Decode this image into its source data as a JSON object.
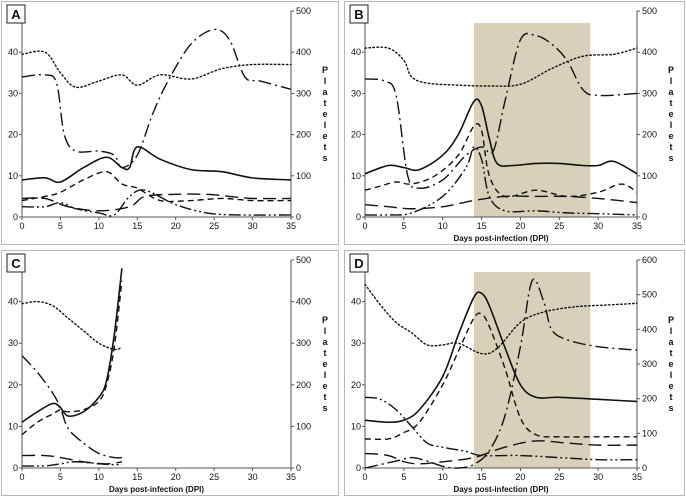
{
  "chart_data": [
    {
      "type": "line",
      "panel_label": "A",
      "xlabel": "",
      "ylabel": "",
      "y2label": "Platelets",
      "xlim": [
        0,
        35
      ],
      "ylim": [
        0,
        50
      ],
      "y2lim": [
        0,
        500
      ],
      "x_ticks": [
        0,
        5,
        10,
        15,
        20,
        25,
        30,
        35
      ],
      "y_ticks": [
        0,
        10,
        20,
        30,
        40,
        50
      ],
      "y2_ticks": [
        0,
        100,
        200,
        300,
        400,
        500
      ],
      "shaded_range": null,
      "series": [
        {
          "style": "solid",
          "axis": "left",
          "x": [
            0,
            3,
            5,
            8,
            11,
            13,
            14,
            15,
            18,
            22,
            26,
            30,
            35
          ],
          "y": [
            9,
            9.5,
            8.5,
            12,
            14.5,
            12,
            12,
            17,
            14,
            11.5,
            11,
            9.5,
            9
          ]
        },
        {
          "style": "short-dash",
          "axis": "left",
          "x": [
            0,
            3,
            5,
            8,
            11,
            13,
            15,
            18,
            22,
            26,
            30,
            35
          ],
          "y": [
            4,
            5,
            6,
            9,
            11,
            8,
            7,
            4,
            4,
            4.5,
            4,
            4
          ]
        },
        {
          "style": "long-dash",
          "axis": "left",
          "x": [
            0,
            3,
            6,
            10,
            14,
            16,
            20,
            24,
            27,
            30,
            35
          ],
          "y": [
            4.5,
            4.5,
            2.5,
            1.5,
            2.5,
            5,
            5.5,
            5.5,
            5,
            4.5,
            4.5
          ]
        },
        {
          "style": "dash-dot-dot",
          "axis": "left",
          "x": [
            0,
            3,
            5,
            7,
            10,
            12,
            14,
            16,
            20,
            24,
            28,
            35
          ],
          "y": [
            2.5,
            2.5,
            3.5,
            2,
            1,
            0.5,
            5,
            6.5,
            3,
            1,
            0.5,
            0.5
          ]
        },
        {
          "style": "dotted",
          "axis": "right",
          "x": [
            0,
            3,
            5,
            7,
            10,
            13,
            15,
            18,
            22,
            26,
            30,
            35
          ],
          "y": [
            395,
            400,
            350,
            315,
            330,
            345,
            320,
            345,
            335,
            360,
            370,
            370
          ]
        },
        {
          "style": "dash-dot",
          "axis": "right",
          "x": [
            0,
            3,
            4.5,
            5.5,
            7,
            10,
            12,
            13,
            15,
            17,
            19,
            22,
            25,
            27,
            29,
            31,
            35
          ],
          "y": [
            340,
            345,
            325,
            200,
            160,
            160,
            150,
            120,
            150,
            250,
            330,
            420,
            455,
            430,
            340,
            330,
            310
          ]
        }
      ]
    },
    {
      "type": "line",
      "panel_label": "B",
      "xlabel": "Days post-infection (DPI)",
      "ylabel": "",
      "y2label": "Platelets",
      "xlim": [
        0,
        35
      ],
      "ylim": [
        0,
        50
      ],
      "y2lim": [
        0,
        500
      ],
      "x_ticks": [
        0,
        5,
        10,
        15,
        20,
        25,
        30,
        35
      ],
      "y_ticks": [
        0,
        10,
        20,
        30,
        40,
        50
      ],
      "y2_ticks": [
        0,
        100,
        200,
        300,
        400,
        500
      ],
      "shaded_range": [
        14,
        29
      ],
      "series": [
        {
          "style": "solid",
          "axis": "left",
          "x": [
            0,
            3,
            5,
            7,
            10,
            12,
            14,
            15,
            16,
            17,
            19,
            22,
            25,
            28,
            30,
            32,
            35
          ],
          "y": [
            10.5,
            12.5,
            12,
            11.5,
            15,
            20,
            28,
            27,
            19,
            13,
            12.5,
            13,
            13,
            12.5,
            12.5,
            13.5,
            10.5
          ]
        },
        {
          "style": "short-dash",
          "axis": "left",
          "x": [
            0,
            2,
            4,
            6,
            9,
            12,
            14,
            15,
            16,
            18,
            22,
            26,
            30,
            33,
            35
          ],
          "y": [
            6.5,
            7.5,
            8.5,
            8,
            10,
            15,
            22,
            21,
            10,
            5,
            6.5,
            5,
            6,
            8,
            6
          ]
        },
        {
          "style": "long-dash",
          "axis": "left",
          "x": [
            0,
            3,
            6,
            10,
            14,
            18,
            22,
            26,
            30,
            35
          ],
          "y": [
            3,
            2.5,
            2,
            2.5,
            4,
            5,
            5,
            5,
            4.5,
            3.5
          ]
        },
        {
          "style": "dash-dot-dot",
          "axis": "left",
          "x": [
            0,
            3,
            6,
            10,
            13,
            14,
            15,
            16,
            18,
            22,
            26,
            30,
            35
          ],
          "y": [
            0.5,
            0.5,
            1,
            5,
            12,
            17,
            14,
            5,
            1.5,
            1.5,
            1,
            0.8,
            0.5
          ]
        },
        {
          "style": "dotted",
          "axis": "right",
          "x": [
            0,
            3,
            5,
            6,
            8,
            12,
            16,
            20,
            24,
            28,
            32,
            35
          ],
          "y": [
            410,
            410,
            380,
            340,
            325,
            320,
            318,
            322,
            360,
            390,
            395,
            410
          ]
        },
        {
          "style": "dash-dot",
          "axis": "right",
          "x": [
            0,
            2.5,
            4,
            5.5,
            7,
            10,
            13,
            15,
            16.5,
            18,
            20,
            22,
            24,
            26,
            28,
            30,
            35
          ],
          "y": [
            335,
            330,
            295,
            100,
            70,
            90,
            150,
            170,
            160,
            280,
            430,
            440,
            420,
            380,
            310,
            295,
            300
          ]
        }
      ]
    },
    {
      "type": "line",
      "panel_label": "C",
      "xlabel": "Days post-infection (DPI)",
      "ylabel": "",
      "y2label": "Platelets",
      "xlim": [
        0,
        35
      ],
      "ylim": [
        0,
        50
      ],
      "y2lim": [
        0,
        500
      ],
      "x_ticks": [
        0,
        5,
        10,
        15,
        20,
        25,
        30,
        35
      ],
      "y_ticks": [
        0,
        10,
        20,
        30,
        40,
        50
      ],
      "y2_ticks": [
        0,
        100,
        200,
        300,
        400,
        500
      ],
      "shaded_range": null,
      "series": [
        {
          "style": "solid",
          "axis": "left",
          "x": [
            0,
            2,
            4,
            5,
            6,
            8,
            10,
            11,
            12,
            13
          ],
          "y": [
            11,
            13.5,
            15.5,
            14.5,
            12.5,
            13.5,
            17,
            21,
            32,
            48
          ]
        },
        {
          "style": "short-dash",
          "axis": "left",
          "x": [
            0,
            2,
            4,
            5,
            6,
            8,
            10,
            11,
            12,
            13
          ],
          "y": [
            8,
            11,
            13,
            14,
            13.5,
            14,
            16,
            20,
            29,
            45
          ]
        },
        {
          "style": "long-dash",
          "axis": "left",
          "x": [
            0,
            3,
            5,
            8,
            11,
            13
          ],
          "y": [
            3,
            3,
            2.5,
            1.5,
            1,
            1.5
          ]
        },
        {
          "style": "dash-dot-dot",
          "axis": "left",
          "x": [
            0,
            3,
            5,
            7,
            10,
            12,
            13
          ],
          "y": [
            0.5,
            0.5,
            1,
            1.5,
            1,
            0.8,
            0.8
          ]
        },
        {
          "style": "dotted",
          "axis": "right",
          "x": [
            0,
            2,
            4,
            6,
            8,
            10,
            12,
            13
          ],
          "y": [
            395,
            400,
            390,
            360,
            330,
            300,
            285,
            290
          ]
        },
        {
          "style": "dash-dot",
          "axis": "right",
          "x": [
            0,
            2,
            4,
            5,
            6,
            8,
            10,
            12,
            13
          ],
          "y": [
            270,
            230,
            180,
            145,
            95,
            60,
            35,
            25,
            25
          ]
        }
      ]
    },
    {
      "type": "line",
      "panel_label": "D",
      "xlabel": "Days post-infection (DPI)",
      "ylabel": "",
      "y2label": "Platelets",
      "xlim": [
        0,
        35
      ],
      "ylim": [
        0,
        50
      ],
      "y2lim": [
        0,
        600
      ],
      "x_ticks": [
        0,
        5,
        10,
        15,
        20,
        25,
        30,
        35
      ],
      "y_ticks": [
        0,
        10,
        20,
        30,
        40,
        50
      ],
      "y2_ticks": [
        0,
        100,
        200,
        300,
        400,
        500,
        600
      ],
      "shaded_range": [
        14,
        29
      ],
      "series": [
        {
          "style": "solid",
          "axis": "left",
          "x": [
            0,
            3,
            5,
            7,
            10,
            12,
            14,
            15,
            16,
            18,
            20,
            22,
            25,
            30,
            35
          ],
          "y": [
            11.5,
            11,
            11.5,
            14,
            22,
            32,
            41,
            42,
            39,
            29,
            20,
            17,
            17,
            16.5,
            16
          ]
        },
        {
          "style": "short-dash",
          "axis": "left",
          "x": [
            0,
            3,
            5,
            7,
            10,
            12,
            14,
            15,
            16,
            18,
            20,
            22,
            25,
            30,
            35
          ],
          "y": [
            7,
            7,
            8.5,
            11,
            20,
            28,
            36,
            37,
            34,
            24,
            12,
            8,
            7.5,
            7.5,
            7.5
          ]
        },
        {
          "style": "long-dash",
          "axis": "left",
          "x": [
            0,
            3,
            5,
            7,
            10,
            14,
            18,
            22,
            26,
            30,
            35
          ],
          "y": [
            3.5,
            3,
            1.5,
            1,
            1.5,
            2.5,
            5,
            6.5,
            6,
            5.5,
            5.5
          ]
        },
        {
          "style": "dash-dot-dot",
          "axis": "left",
          "x": [
            0,
            2,
            4,
            6,
            8,
            10,
            13,
            15,
            20,
            25,
            30,
            35
          ],
          "y": [
            17,
            16.5,
            14,
            10,
            6,
            5,
            4,
            3,
            3,
            2.5,
            2,
            2
          ]
        },
        {
          "style": "dotted",
          "axis": "right",
          "x": [
            0,
            2,
            4,
            6,
            8,
            10,
            12,
            15,
            17,
            20,
            23,
            27,
            31,
            35
          ],
          "y": [
            530,
            470,
            420,
            390,
            355,
            355,
            360,
            330,
            345,
            420,
            450,
            465,
            470,
            475
          ]
        },
        {
          "style": "dash-dot",
          "axis": "right",
          "x": [
            0,
            4,
            6,
            8,
            10,
            12,
            14,
            16,
            18,
            20,
            21.5,
            23,
            24,
            26,
            30,
            35
          ],
          "y": [
            0,
            20,
            30,
            20,
            5,
            0,
            10,
            50,
            150,
            350,
            540,
            480,
            400,
            370,
            350,
            340
          ]
        }
      ]
    }
  ]
}
